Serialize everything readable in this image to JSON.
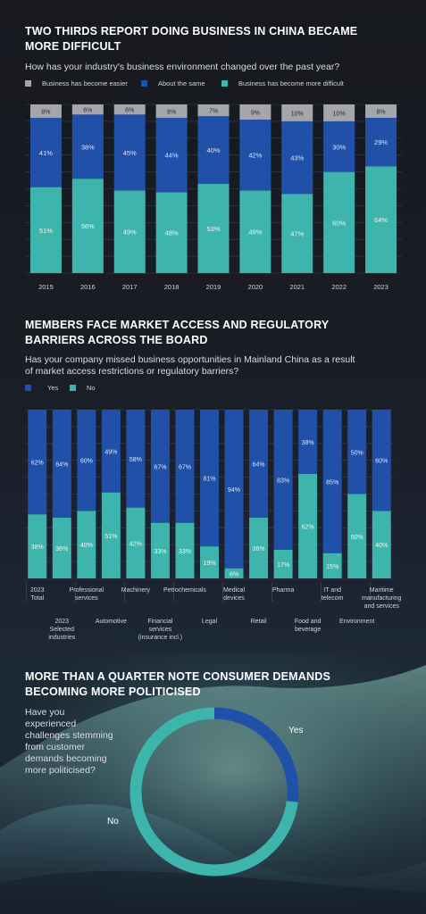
{
  "colors": {
    "easier": "#a5a6a9",
    "same": "#2150a8",
    "difficult": "#3eb5ac",
    "yes": "#2150a8",
    "no": "#3eb5ac"
  },
  "section1": {
    "title": "TWO THIRDS REPORT DOING BUSINESS IN CHINA BECAME MORE DIFFICULT",
    "question": "How has your industry's business environment changed over the past year?",
    "legend": [
      "Business has become easier",
      "About the same",
      "Business has become more difficult"
    ]
  },
  "section2": {
    "title": "MEMBERS FACE MARKET ACCESS AND REGULATORY BARRIERS ACROSS THE BOARD",
    "question": "Has your company missed business opportunities in Mainland China as a result of market access restrictions or regulatory barriers?",
    "legend": [
      "Yes",
      "No"
    ]
  },
  "section3": {
    "title": "MORE THAN A QUARTER NOTE CONSUMER DEMANDS BECOMING MORE POLITICISED",
    "question": "Have you experienced challenges stemming from customer demands becoming more politicised?",
    "label_yes": "Yes",
    "label_no": "No"
  },
  "chart_data": [
    {
      "type": "bar",
      "stacked": true,
      "title": "TWO THIRDS REPORT DOING BUSINESS IN CHINA BECAME MORE DIFFICULT",
      "subtitle": "How has your industry's business environment changed over the past year?",
      "categories": [
        "2015",
        "2016",
        "2017",
        "2018",
        "2019",
        "2020",
        "2021",
        "2022",
        "2023"
      ],
      "series": [
        {
          "name": "Business has become more difficult",
          "values": [
            51,
            56,
            49,
            48,
            53,
            49,
            47,
            60,
            64
          ]
        },
        {
          "name": "About the same",
          "values": [
            41,
            38,
            45,
            44,
            40,
            42,
            43,
            30,
            29
          ]
        },
        {
          "name": "Business has become easier",
          "values": [
            8,
            6,
            6,
            8,
            7,
            9,
            10,
            10,
            8
          ]
        }
      ],
      "ylim": [
        0,
        100
      ],
      "grid": true,
      "legend_position": "top"
    },
    {
      "type": "bar",
      "stacked": true,
      "title": "MEMBERS FACE MARKET ACCESS AND REGULATORY BARRIERS ACROSS THE BOARD",
      "subtitle": "Has your company missed business opportunities in Mainland China as a result of market access restrictions or regulatory barriers?",
      "categories": [
        "2023 Total",
        "2023 Selected industries",
        "Professional services",
        "Automotive",
        "Machinery",
        "Financial services (insurance incl.)",
        "Petrochemicals",
        "Legal",
        "Medical devices",
        "Retail",
        "Pharma",
        "Food and beverage",
        "IT and telecom",
        "Environment",
        "Maritime manufacturing and services"
      ],
      "category_lines": [
        [
          "2023",
          "Total"
        ],
        [
          "2023",
          "Selected",
          "industries"
        ],
        [
          "Professional",
          "services"
        ],
        [
          "Automotive"
        ],
        [
          "Machinery"
        ],
        [
          "Financial",
          "services",
          "(insurance incl.)"
        ],
        [
          "Petrochemicals"
        ],
        [
          "Legal"
        ],
        [
          "Medical",
          "devices"
        ],
        [
          "Retail"
        ],
        [
          "Pharma"
        ],
        [
          "Food and",
          "beverage"
        ],
        [
          "IT and",
          "telecom"
        ],
        [
          "Environment"
        ],
        [
          "Maritime",
          "manufacturing",
          "and services"
        ]
      ],
      "series": [
        {
          "name": "No",
          "values": [
            38,
            36,
            40,
            51,
            42,
            33,
            33,
            19,
            6,
            36,
            17,
            62,
            15,
            50,
            40
          ]
        },
        {
          "name": "Yes",
          "values": [
            62,
            64,
            60,
            49,
            58,
            67,
            67,
            81,
            94,
            64,
            83,
            38,
            85,
            50,
            60
          ]
        }
      ],
      "ylim": [
        0,
        100
      ],
      "grid": true,
      "legend_position": "top-left"
    },
    {
      "type": "pie",
      "donut": true,
      "title": "MORE THAN A QUARTER NOTE CONSUMER DEMANDS BECOMING MORE POLITICISED",
      "labels": [
        "Yes",
        "No"
      ],
      "values": [
        27,
        73
      ]
    }
  ]
}
